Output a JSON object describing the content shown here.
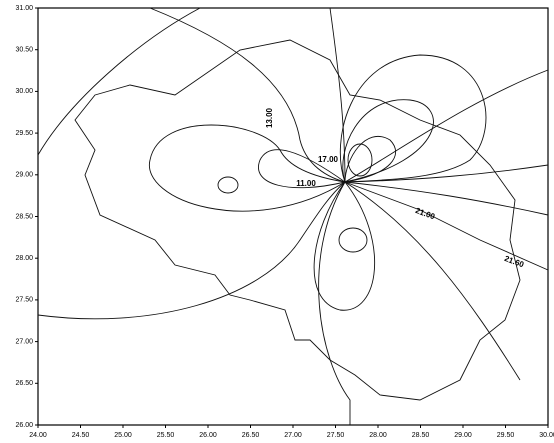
{
  "chart_data": {
    "type": "contour",
    "xlim": [
      24,
      30
    ],
    "ylim": [
      26,
      31
    ],
    "xticks": [
      {
        "value": 24,
        "label": "24.00"
      },
      {
        "value": 24.5,
        "label": "24.50"
      },
      {
        "value": 25,
        "label": "25.00"
      },
      {
        "value": 25.5,
        "label": "25.50"
      },
      {
        "value": 26,
        "label": "26.00"
      },
      {
        "value": 26.5,
        "label": "26.50"
      },
      {
        "value": 27,
        "label": "27.00"
      },
      {
        "value": 27.5,
        "label": "27.50"
      },
      {
        "value": 28,
        "label": "28.00"
      },
      {
        "value": 28.5,
        "label": "28.50"
      },
      {
        "value": 29,
        "label": "29.00"
      },
      {
        "value": 29.5,
        "label": "29.50"
      },
      {
        "value": 30,
        "label": "30.00"
      }
    ],
    "yticks": [
      {
        "value": 26,
        "label": "26.00"
      },
      {
        "value": 26.5,
        "label": "26.50"
      },
      {
        "value": 27,
        "label": "27.00"
      },
      {
        "value": 27.5,
        "label": "27.50"
      },
      {
        "value": 28,
        "label": "28.00"
      },
      {
        "value": 28.5,
        "label": "28.50"
      },
      {
        "value": 29,
        "label": "29.00"
      },
      {
        "value": 29.5,
        "label": "29.50"
      },
      {
        "value": 30,
        "label": "30.00"
      },
      {
        "value": 30.5,
        "label": "30.50"
      },
      {
        "value": 31,
        "label": "31.00"
      }
    ],
    "contour_labels": [
      "13.00",
      "11.00",
      "17.00",
      "21.00",
      "21.60"
    ]
  }
}
